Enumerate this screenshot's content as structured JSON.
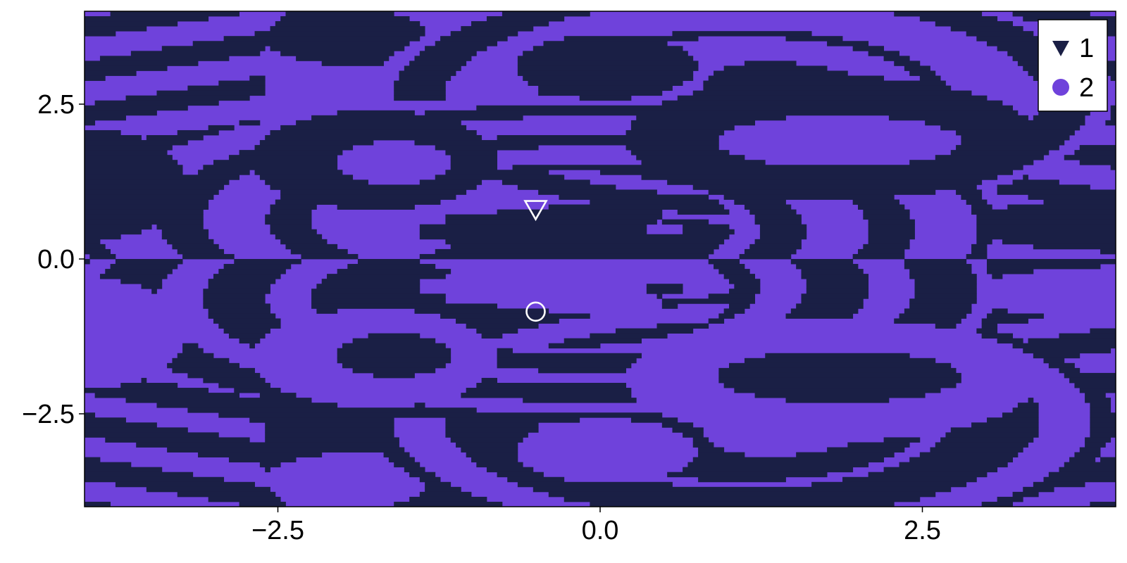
{
  "chart_data": {
    "type": "heatmap",
    "title": "",
    "xlabel": "",
    "ylabel": "",
    "xlim": [
      -4.0,
      4.0
    ],
    "ylim": [
      -4.0,
      4.0
    ],
    "grid": false,
    "x_ticks": [
      -2.5,
      0.0,
      2.5
    ],
    "y_ticks": [
      -2.5,
      0.0,
      2.5
    ],
    "x_tick_labels": [
      "−2.5",
      "0.0",
      "2.5"
    ],
    "y_tick_labels": [
      "−2.5",
      "0.0",
      "2.5"
    ],
    "legend_position": "top-right",
    "categories": [
      {
        "label": "1",
        "color": "#1a1f45",
        "marker": "triangle-down"
      },
      {
        "label": "2",
        "color": "#6f42db",
        "marker": "circle"
      }
    ],
    "attractors": [
      {
        "label": "1",
        "x": -0.5,
        "y": 0.8,
        "marker": "triangle-down"
      },
      {
        "label": "2",
        "x": -0.5,
        "y": -0.85,
        "marker": "circle"
      }
    ],
    "basin_regions": {
      "description_symmetry": "pattern is point-symmetric: basin 2 at (x,y) equals basin 1 at (x,-y)",
      "upper_half_dominant": "1",
      "lower_half_dominant": "2"
    }
  },
  "colors": {
    "basin1": "#1a1f45",
    "basin2": "#6f42db",
    "frame": "#000000",
    "marker_stroke": "#ffffff"
  }
}
